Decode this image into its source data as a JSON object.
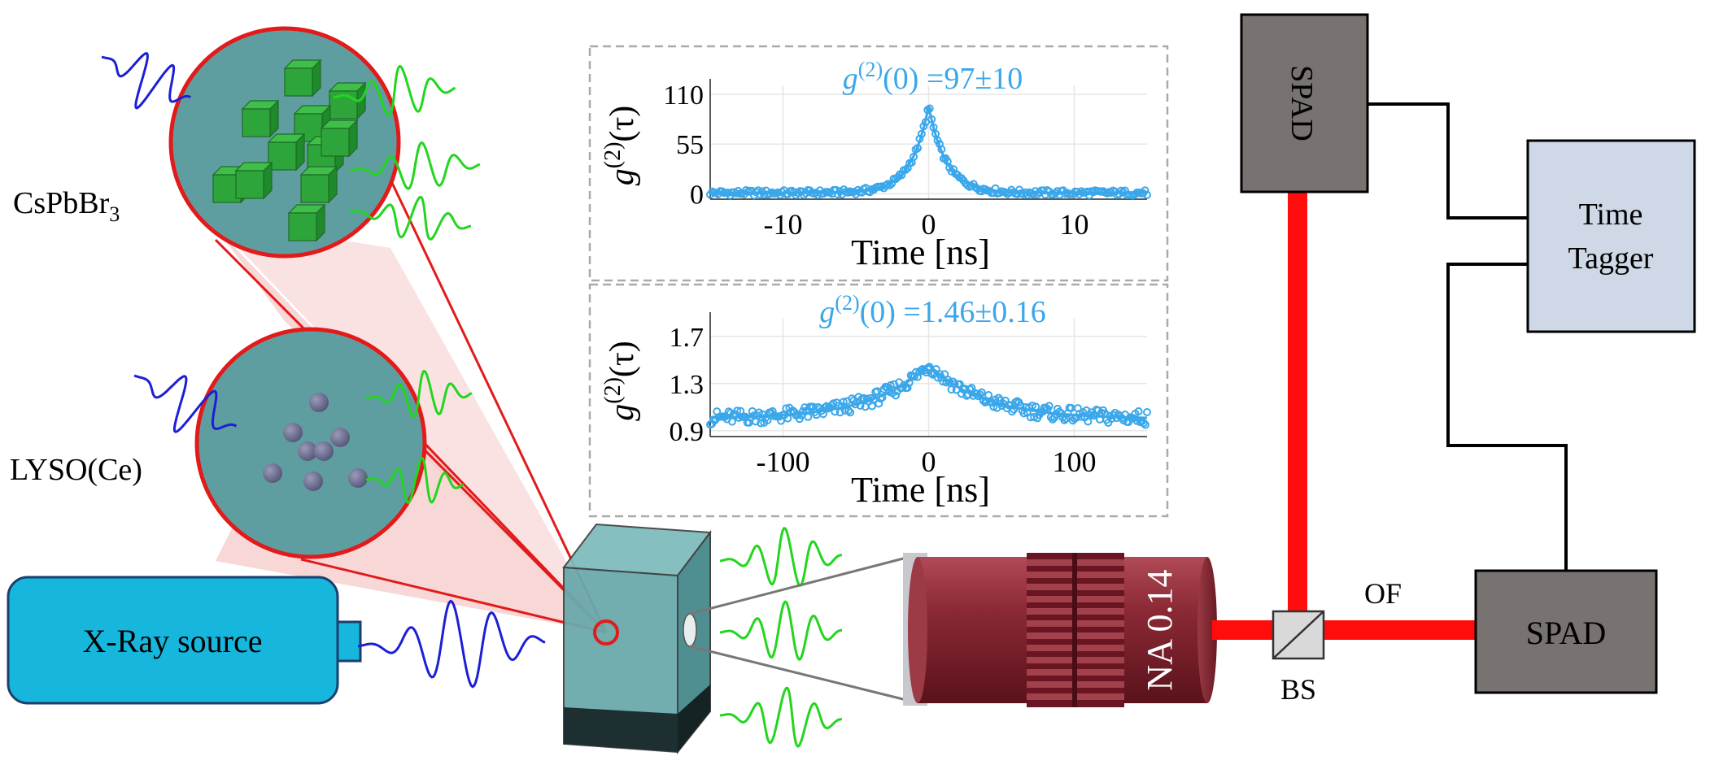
{
  "labels": {
    "cspbbr_main": "CsPbBr",
    "cspbbr_sub": "3",
    "lyso": "LYSO(Ce)",
    "xray_source": "X-Ray source",
    "objective": "NA 0.14",
    "bs": "BS",
    "of": "OF",
    "spad_top": "SPAD",
    "spad_bottom": "SPAD",
    "tagger_line1": "Time",
    "tagger_line2": "Tagger"
  },
  "colors": {
    "xray_box": "#17b6dc",
    "spad_box": "#787370",
    "tagger_box": "#cfd8e6",
    "laser_path": "#ff0d0d",
    "objective": "#7a1f2b",
    "crystal": "#5f9ea0",
    "green_emission": "#22d61e",
    "blue_xray": "#1c1fd6",
    "cone": "#f6c9c9",
    "zoom_circle_border": "#e31a1a",
    "plot_color": "#3aa7ea"
  },
  "chart_data": [
    {
      "type": "scatter",
      "title_prefix": "g",
      "title_sup": "(2)",
      "title_rest": "(0) =97±10",
      "xlabel": "Time [ns]",
      "ylabel_main": "g",
      "ylabel_sup": "(2)",
      "ylabel_rest": "(τ)",
      "xlim": [
        -15,
        15
      ],
      "ylim": [
        -6,
        120
      ],
      "xticks": [
        -10,
        0,
        10
      ],
      "yticks": [
        0,
        55,
        110
      ],
      "grid": true,
      "peak_value": 97,
      "baseline": 1,
      "decay_ns": 1.2,
      "points": 220
    },
    {
      "type": "scatter",
      "title_prefix": "g",
      "title_sup": "(2)",
      "title_rest": "(0) =1.46±0.16",
      "xlabel": "Time [ns]",
      "ylabel_main": "g",
      "ylabel_sup": "(2)",
      "ylabel_rest": "(τ)",
      "xlim": [
        -150,
        150
      ],
      "ylim": [
        0.85,
        1.85
      ],
      "xticks": [
        -100,
        0,
        100
      ],
      "yticks": [
        0.9,
        1.3,
        1.7
      ],
      "grid": true,
      "peak_value": 1.46,
      "baseline": 1.0,
      "decay_ns": 38,
      "points": 260
    }
  ]
}
